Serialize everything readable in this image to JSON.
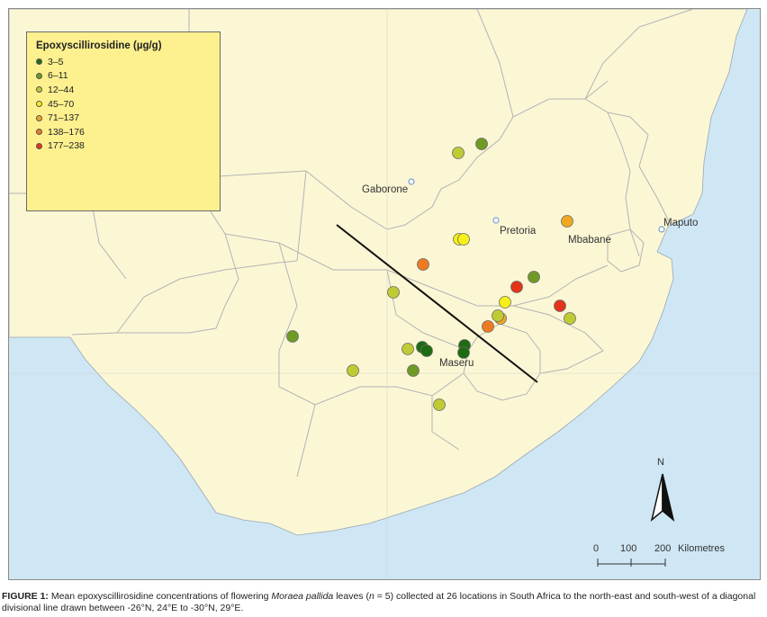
{
  "legend": {
    "title": "Epoxyscillirosidine (µg/g)",
    "items": [
      {
        "label": "3–5",
        "color": "#1e6b12"
      },
      {
        "label": "6–11",
        "color": "#6f9a26"
      },
      {
        "label": "12–44",
        "color": "#bfcb33"
      },
      {
        "label": "45–70",
        "color": "#f6f018"
      },
      {
        "label": "71–137",
        "color": "#f0a820"
      },
      {
        "label": "138–176",
        "color": "#ee7a22"
      },
      {
        "label": "177–238",
        "color": "#e3341a"
      }
    ]
  },
  "cities": {
    "gaborone": "Gaborone",
    "pretoria": "Pretoria",
    "mbabane": "Mbabane",
    "maputo": "Maputo",
    "maseru": "Maseru"
  },
  "scale": {
    "t0": "0",
    "t100": "100",
    "t200": "200",
    "unit": "Kilometres"
  },
  "north_label": "N",
  "colors": {
    "land": "#fbf7d5",
    "water": "#cfe6f5",
    "border": "#b3b3b3",
    "legend_bg": "#fdf08f"
  },
  "caption": {
    "label": "FIGURE 1:",
    "text_before": " Mean epoxyscillirosidine concentrations of flowering ",
    "species": "Moraea pallida",
    "text_middle": " leaves (",
    "n_symbol": "n",
    "text_after": " = 5) collected at 26 locations in South Africa to the north-east and south-west of a diagonal divisional line drawn between -26°N, 24°E to -30°N, 29°E."
  }
}
